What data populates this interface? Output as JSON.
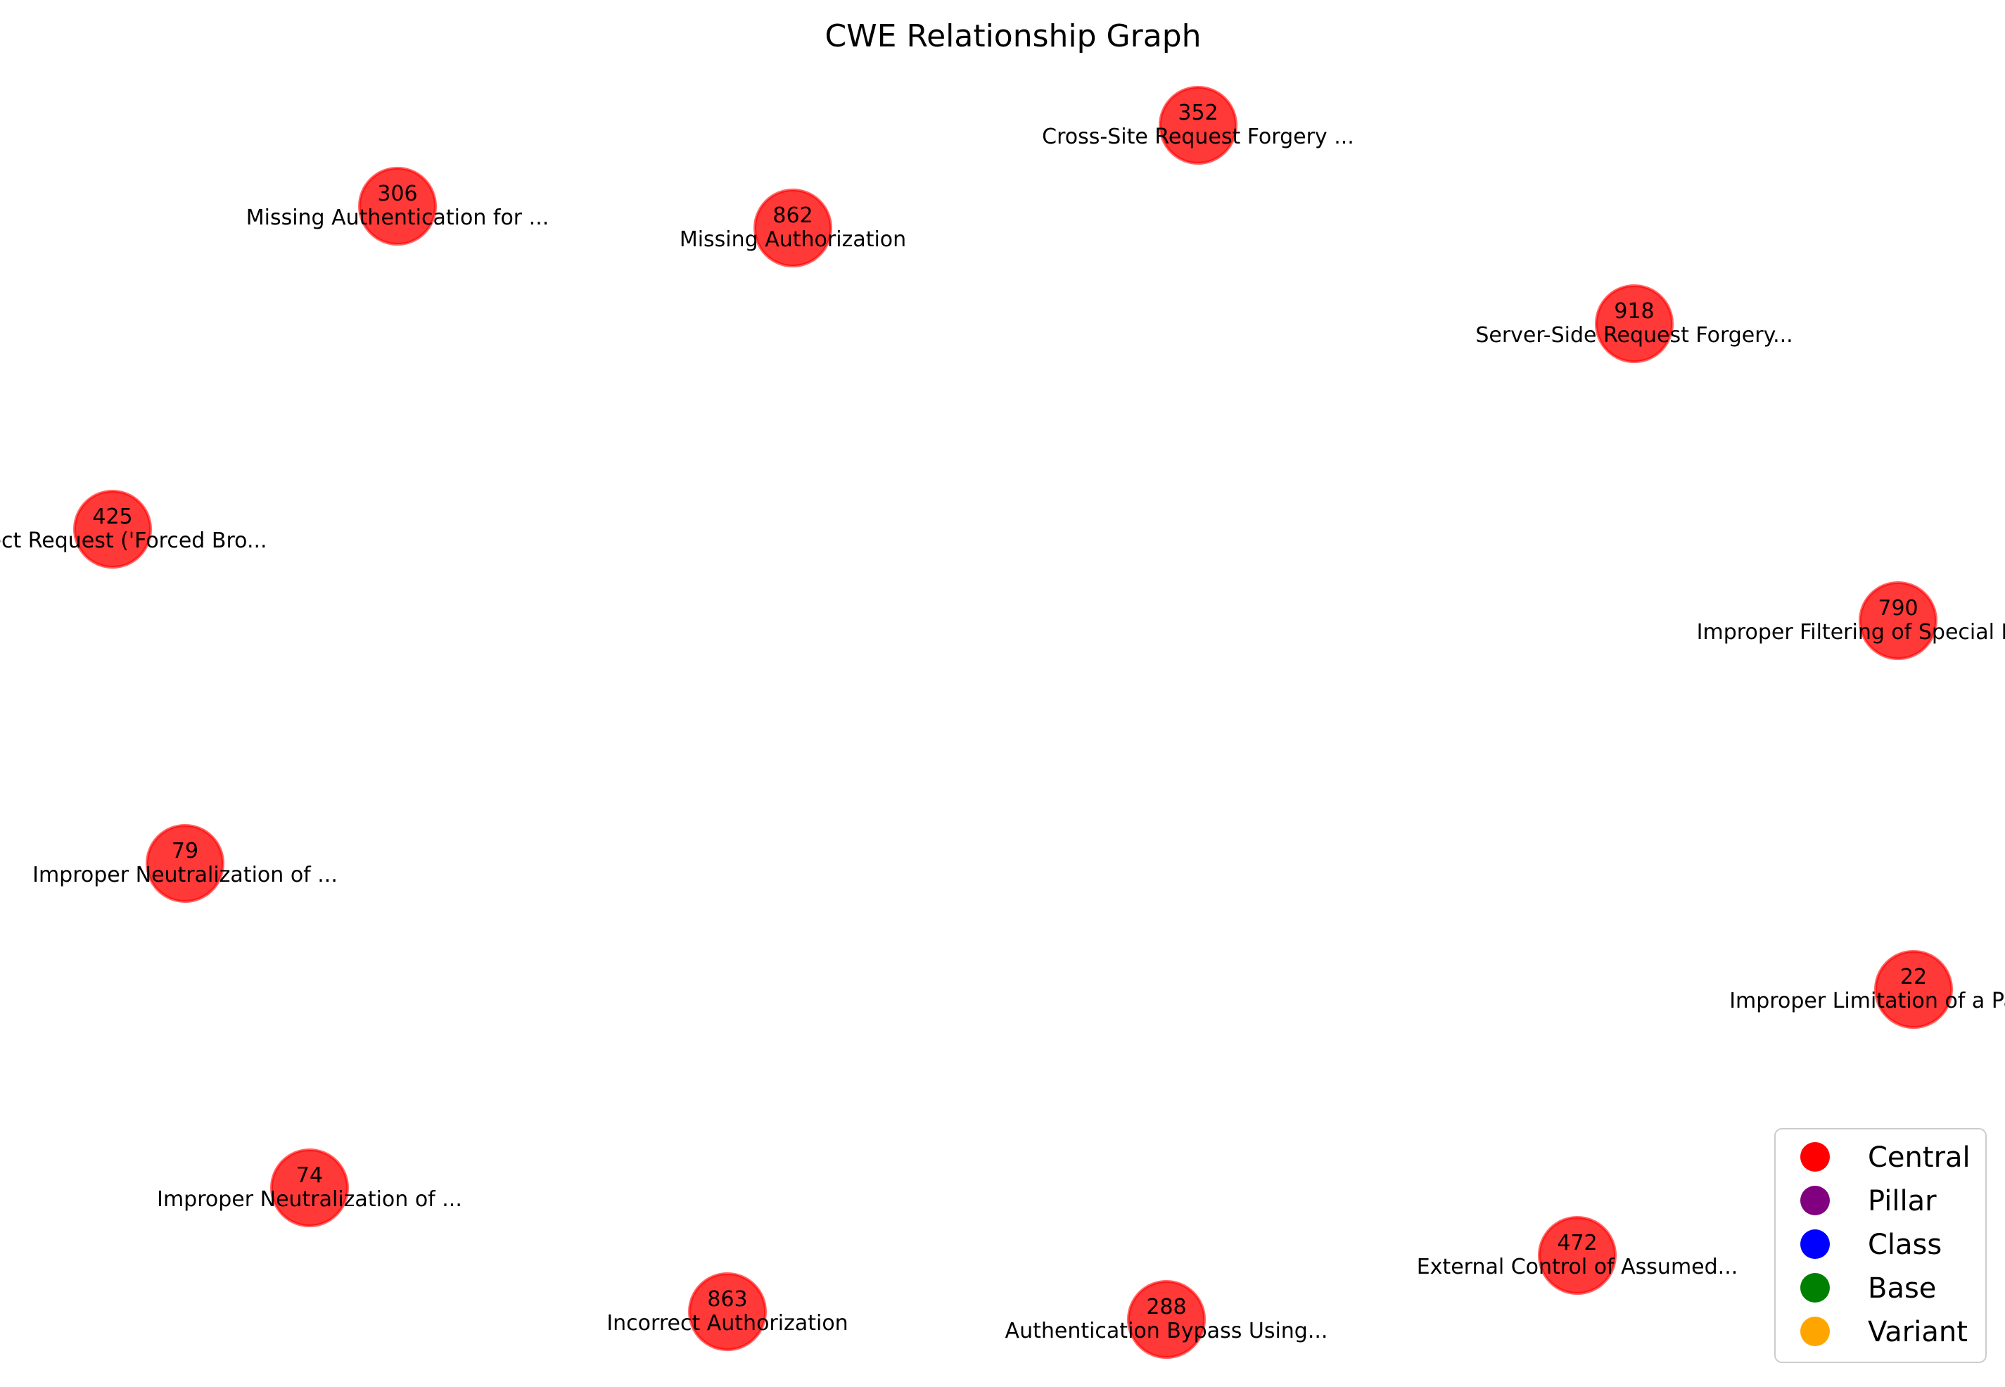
{
  "title": "CWE Relationship Graph",
  "colors": {
    "central": "#ff0000",
    "pillar": "#800080",
    "class": "#0000ff",
    "base": "#008000",
    "variant": "#ffa500"
  },
  "nodes": [
    {
      "id": "352",
      "label": "Cross-Site Request Forgery ...",
      "category": "central"
    },
    {
      "id": "306",
      "label": "Missing Authentication for ...",
      "category": "central"
    },
    {
      "id": "862",
      "label": "Missing Authorization",
      "category": "central"
    },
    {
      "id": "918",
      "label": "Server-Side Request Forgery...",
      "category": "central"
    },
    {
      "id": "425",
      "label": "Direct Request ('Forced Bro...",
      "category": "central"
    },
    {
      "id": "790",
      "label": "Improper Filtering of Special Elements",
      "category": "central"
    },
    {
      "id": "79",
      "label": "Improper Neutralization of ...",
      "category": "central"
    },
    {
      "id": "22",
      "label": "Improper Limitation of a Pathname",
      "category": "central"
    },
    {
      "id": "74",
      "label": "Improper Neutralization of ...",
      "category": "central"
    },
    {
      "id": "472",
      "label": "External Control of Assumed...",
      "category": "central"
    },
    {
      "id": "863",
      "label": "Incorrect Authorization",
      "category": "central"
    },
    {
      "id": "288",
      "label": "Authentication Bypass Using...",
      "category": "central"
    }
  ],
  "legend": [
    {
      "label": "Central",
      "color_key": "central"
    },
    {
      "label": "Pillar",
      "color_key": "pillar"
    },
    {
      "label": "Class",
      "color_key": "class"
    },
    {
      "label": "Base",
      "color_key": "base"
    },
    {
      "label": "Variant",
      "color_key": "variant"
    }
  ]
}
